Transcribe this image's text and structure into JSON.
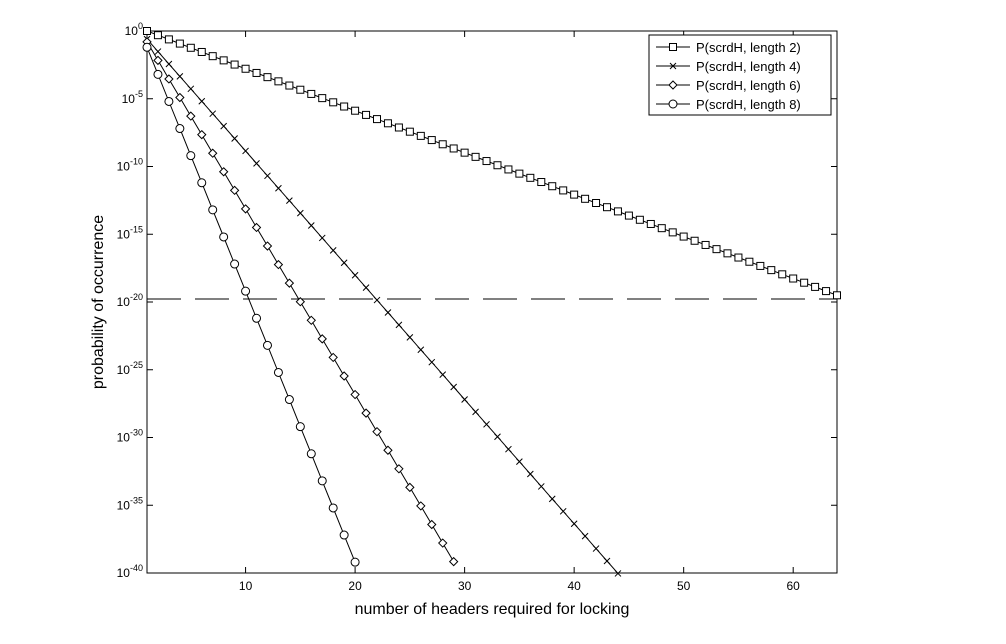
{
  "chart_data": {
    "type": "line",
    "title": "",
    "xlabel": "number of headers required for locking",
    "ylabel": "probability of occurrence",
    "xlim": [
      1,
      64
    ],
    "ylim_exponent": [
      -40,
      0
    ],
    "y_scale": "log",
    "x_ticks": [
      10,
      20,
      30,
      40,
      50,
      60
    ],
    "y_ticks": [
      {
        "base": "10",
        "exp": "0",
        "value": 0
      },
      {
        "base": "10",
        "exp": "-5",
        "value": -5
      },
      {
        "base": "10",
        "exp": "-10",
        "value": -10
      },
      {
        "base": "10",
        "exp": "-15",
        "value": -15
      },
      {
        "base": "10",
        "exp": "-20",
        "value": -20
      },
      {
        "base": "10",
        "exp": "-25",
        "value": -25
      },
      {
        "base": "10",
        "exp": "-30",
        "value": -30
      },
      {
        "base": "10",
        "exp": "-35",
        "value": -35
      },
      {
        "base": "10",
        "exp": "-40",
        "value": -40
      }
    ],
    "threshold": {
      "y_exponent": -20,
      "style": "dashed"
    },
    "legend_position": "top-right",
    "series": [
      {
        "name": "P(scrdH, length 2)",
        "marker": "square",
        "log10_y_at_n1": 0,
        "log10_y_slope_per_header": -0.3096,
        "x_max": 64
      },
      {
        "name": "P(scrdH, length 4)",
        "marker": "x",
        "log10_y_at_n1": -0.6,
        "log10_y_slope_per_header": -0.917,
        "x_max": 44
      },
      {
        "name": "P(scrdH, length 6)",
        "marker": "diamond",
        "log10_y_at_n1": -0.8,
        "log10_y_slope_per_header": -1.37,
        "x_max": 30
      },
      {
        "name": "P(scrdH, length 8)",
        "marker": "circle",
        "log10_y_at_n1": -1.2,
        "log10_y_slope_per_header": -2.0,
        "x_max": 21
      }
    ],
    "grid": false
  }
}
